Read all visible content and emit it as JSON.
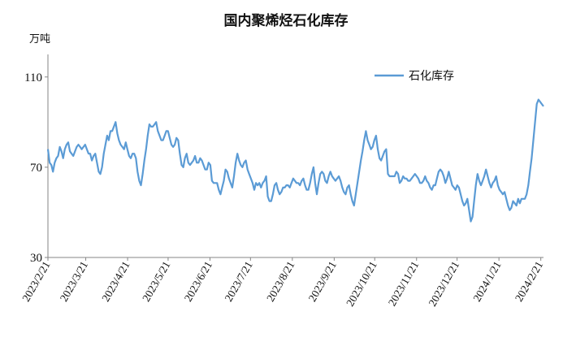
{
  "chart_data": {
    "type": "line",
    "title": "国内聚烯烃石化库存",
    "ylabel": "万吨",
    "ylim": [
      30,
      120
    ],
    "yticks": [
      30,
      70,
      110
    ],
    "grid": false,
    "legend_position": "top-right",
    "x_tick_labels": [
      "2023/2/21",
      "2023/3/21",
      "2023/4/21",
      "2023/5/21",
      "2023/6/21",
      "2023/7/21",
      "2023/8/21",
      "2023/9/21",
      "2023/10/21",
      "2023/11/21",
      "2023/12/21",
      "2024/1/21",
      "2024/2/21"
    ],
    "series_color": "#5b9bd5",
    "series": [
      {
        "name": "石化库存",
        "x_start": "2023-02-21",
        "x_end": "2024-02-23",
        "values": [
          78,
          72,
          71,
          68,
          72,
          74,
          75,
          79,
          77,
          74,
          78,
          80,
          81,
          77,
          76,
          75,
          77,
          79,
          80,
          79,
          78,
          79,
          80,
          78,
          76,
          76,
          73,
          75,
          76,
          72,
          68,
          67,
          70,
          76,
          80,
          84,
          82,
          86,
          86,
          88,
          90,
          85,
          82,
          80,
          79,
          78,
          81,
          78,
          75,
          74,
          76,
          76,
          74,
          68,
          64,
          62,
          67,
          73,
          78,
          84,
          89,
          88,
          88,
          89,
          90,
          86,
          84,
          82,
          82,
          84,
          86,
          86,
          83,
          80,
          79,
          80,
          83,
          82,
          76,
          71,
          70,
          74,
          76,
          72,
          71,
          72,
          73,
          75,
          72,
          72,
          74,
          73,
          71,
          69,
          69,
          72,
          71,
          64,
          63,
          63,
          63,
          60,
          58,
          61,
          64,
          69,
          68,
          65,
          63,
          61,
          66,
          72,
          76,
          73,
          71,
          70,
          72,
          73,
          69,
          67,
          65,
          63,
          60,
          63,
          62,
          63,
          61,
          63,
          64,
          66,
          57,
          55,
          55,
          58,
          62,
          63,
          60,
          58,
          59,
          61,
          61,
          62,
          62,
          61,
          63,
          65,
          64,
          63,
          63,
          62,
          64,
          65,
          62,
          60,
          60,
          63,
          67,
          70,
          63,
          58,
          63,
          67,
          68,
          67,
          64,
          63,
          66,
          68,
          66,
          65,
          64,
          65,
          66,
          64,
          61,
          59,
          58,
          61,
          62,
          58,
          55,
          53,
          58,
          63,
          68,
          73,
          77,
          82,
          86,
          82,
          80,
          78,
          79,
          82,
          84,
          78,
          74,
          73,
          75,
          77,
          78,
          67,
          66,
          66,
          66,
          66,
          68,
          67,
          63,
          64,
          66,
          65,
          65,
          64,
          64,
          65,
          66,
          67,
          66,
          65,
          63,
          63,
          64,
          66,
          64,
          63,
          61,
          60,
          62,
          62,
          65,
          68,
          69,
          68,
          66,
          63,
          65,
          68,
          65,
          62,
          61,
          60,
          62,
          61,
          58,
          55,
          53,
          54,
          56,
          51,
          46,
          48,
          55,
          62,
          67,
          64,
          62,
          64,
          66,
          69,
          66,
          63,
          61,
          63,
          64,
          66,
          62,
          60,
          59,
          58,
          59,
          56,
          53,
          51,
          52,
          55,
          54,
          53,
          56,
          54,
          56,
          56,
          56,
          58,
          62,
          68,
          74,
          82,
          90,
          98,
          100,
          99,
          98,
          97
        ]
      }
    ]
  }
}
